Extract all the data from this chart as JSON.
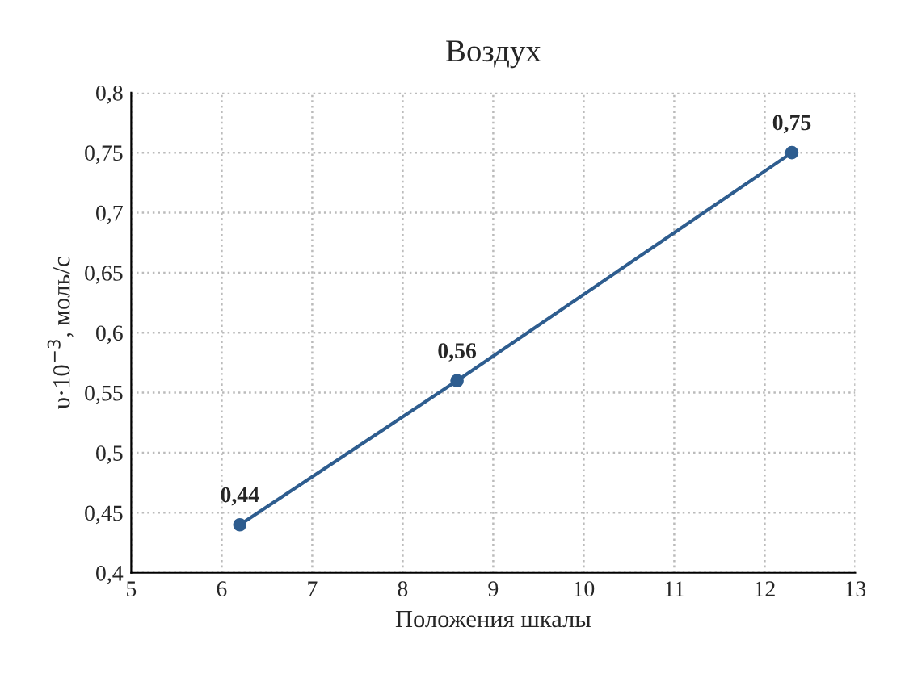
{
  "chart_data": {
    "type": "line",
    "title": "Воздух",
    "xlabel": "Положения шкалы",
    "ylabel": "υ·10$^{−3}$, моль/с",
    "x": [
      6.2,
      8.6,
      12.3
    ],
    "series": [
      {
        "color": "#2e5d8f",
        "values": [
          0.44,
          0.56,
          0.75
        ]
      }
    ],
    "value_labels": [
      "0,44",
      "0,56",
      "0,75"
    ],
    "xlim": [
      5,
      13
    ],
    "xticks": [
      5,
      6,
      7,
      8,
      9,
      10,
      11,
      12,
      13
    ],
    "ylim": [
      0.4,
      0.8
    ],
    "yticks": [
      {
        "value": 0.4,
        "label": "0,4"
      },
      {
        "value": 0.45,
        "label": "0,45"
      },
      {
        "value": 0.5,
        "label": "0,5"
      },
      {
        "value": 0.55,
        "label": "0,55"
      },
      {
        "value": 0.6,
        "label": "0,6"
      },
      {
        "value": 0.65,
        "label": "0,65"
      },
      {
        "value": 0.7,
        "label": "0,7"
      },
      {
        "value": 0.75,
        "label": "0,75"
      },
      {
        "value": 0.8,
        "label": "0,8"
      }
    ],
    "grid": true,
    "marker": "circle",
    "line_style": "solid"
  }
}
